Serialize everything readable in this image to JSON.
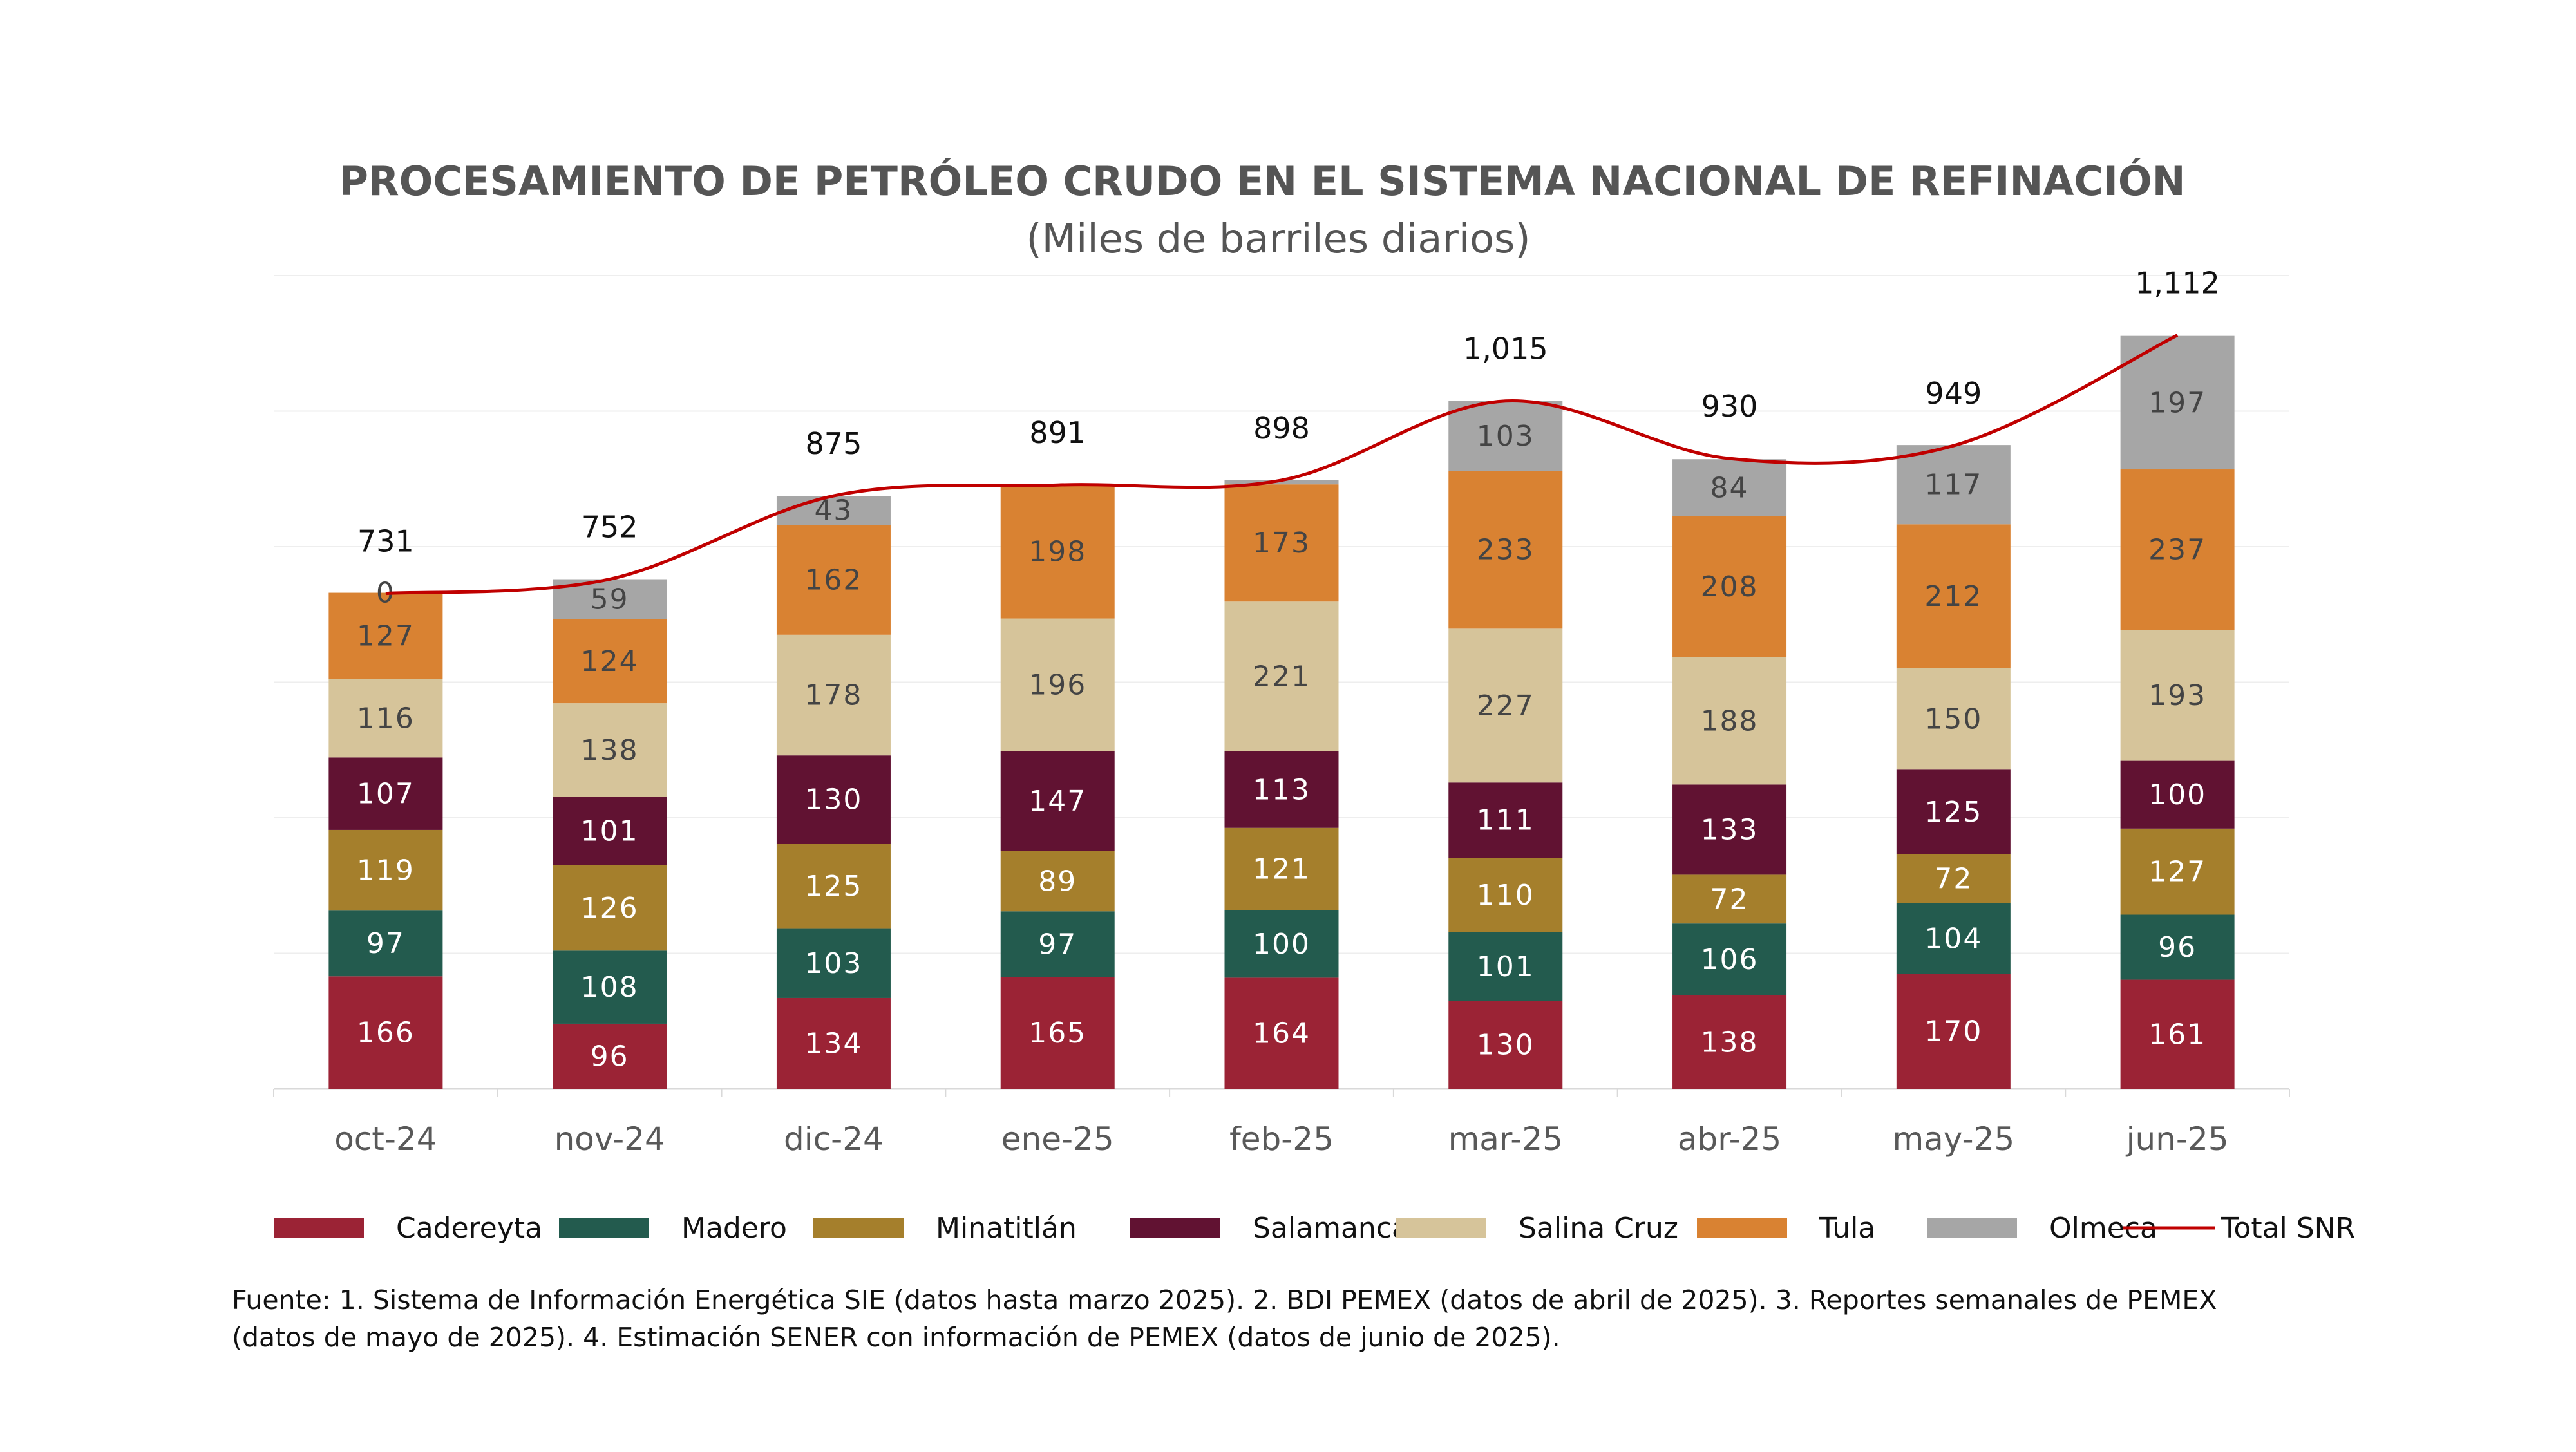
{
  "chart_data": {
    "type": "bar",
    "stacked": true,
    "title": "PROCESAMIENTO DE PETRÓLEO CRUDO EN EL SISTEMA NACIONAL DE REFINACIÓN",
    "subtitle": "(Miles de barriles diarios)",
    "categories": [
      "oct-24",
      "nov-24",
      "dic-24",
      "ene-25",
      "feb-25",
      "mar-25",
      "abr-25",
      "may-25",
      "jun-25"
    ],
    "ylim": [
      0,
      1200
    ],
    "grid": true,
    "legend_position": "bottom",
    "series": [
      {
        "name": "Cadereyta",
        "color": "#9b2335",
        "label_color": "#ffffff",
        "values": [
          166,
          96,
          134,
          165,
          164,
          130,
          138,
          170,
          161
        ]
      },
      {
        "name": "Madero",
        "color": "#235b4e",
        "label_color": "#ffffff",
        "values": [
          97,
          108,
          103,
          97,
          100,
          101,
          106,
          104,
          96
        ]
      },
      {
        "name": "Minatitlán",
        "color": "#a57f2c",
        "label_color": "#ffffff",
        "values": [
          119,
          126,
          125,
          89,
          121,
          110,
          72,
          72,
          127
        ]
      },
      {
        "name": "Salamanca",
        "color": "#611232",
        "label_color": "#ffffff",
        "values": [
          107,
          101,
          130,
          147,
          113,
          111,
          133,
          125,
          100
        ]
      },
      {
        "name": "Salina Cruz",
        "color": "#d6c49a",
        "label_color": "#444444",
        "values": [
          116,
          138,
          178,
          196,
          221,
          227,
          188,
          150,
          193
        ]
      },
      {
        "name": "Tula",
        "color": "#d98232",
        "label_color": "#444444",
        "values": [
          127,
          124,
          162,
          198,
          173,
          233,
          208,
          212,
          237
        ]
      },
      {
        "name": "Olmeca",
        "color": "#a6a6a6",
        "label_color": "#444444",
        "values": [
          0,
          59,
          43,
          0,
          6,
          103,
          84,
          117,
          197
        ],
        "labels": [
          "0",
          "59",
          "43",
          "",
          "",
          "103",
          "84",
          "117",
          "197"
        ]
      }
    ],
    "total": {
      "name": "Total SNR",
      "color": "#c00000",
      "values": [
        731,
        752,
        875,
        891,
        898,
        1015,
        930,
        949,
        1112
      ],
      "labels": [
        "731",
        "752",
        "875",
        "891",
        "898",
        "1,015",
        "930",
        "949",
        "1,112"
      ]
    }
  },
  "footnote": {
    "line1": "Fuente: 1. Sistema de Información Energética SIE (datos hasta marzo 2025). 2. BDI PEMEX (datos de abril de 2025). 3. Reportes semanales de PEMEX",
    "line2": "(datos de mayo de 2025). 4. Estimación SENER con información de PEMEX (datos de junio de 2025)."
  }
}
